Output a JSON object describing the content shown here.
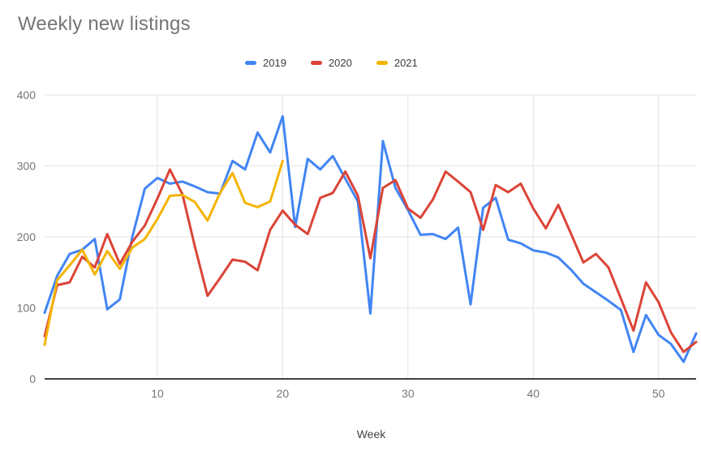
{
  "chart_data": {
    "type": "line",
    "title": "Weekly new listings",
    "xlabel": "Week",
    "x_range": [
      1,
      53
    ],
    "x_ticks": [
      10,
      20,
      30,
      40,
      50
    ],
    "ylim": [
      0,
      400
    ],
    "y_ticks": [
      0,
      100,
      200,
      300,
      400
    ],
    "grid": true,
    "legend_position": "top",
    "background": "#ffffff",
    "gridline_color": "#e3e3e3",
    "baseline_color": "#424242",
    "series": [
      {
        "name": "2019",
        "color": "#4285F4",
        "start_week": 1,
        "values": [
          93,
          145,
          176,
          182,
          197,
          98,
          112,
          200,
          268,
          283,
          275,
          278,
          271,
          263,
          261,
          307,
          295,
          347,
          319,
          370,
          214,
          310,
          295,
          314,
          282,
          250,
          92,
          335,
          269,
          238,
          203,
          204,
          197,
          213,
          105,
          241,
          255,
          196,
          191,
          181,
          178,
          171,
          154,
          134,
          122,
          110,
          97,
          38,
          90,
          62,
          49,
          24,
          64
        ]
      },
      {
        "name": "2020",
        "color": "#DB4437",
        "start_week": 1,
        "values": [
          60,
          132,
          136,
          172,
          157,
          204,
          162,
          193,
          216,
          254,
          295,
          260,
          186,
          117,
          142,
          168,
          165,
          153,
          210,
          237,
          217,
          204,
          255,
          262,
          292,
          258,
          170,
          269,
          280,
          240,
          227,
          253,
          292,
          278,
          263,
          210,
          273,
          263,
          275,
          240,
          212,
          245,
          205,
          164,
          176,
          157,
          113,
          68,
          136,
          108,
          65,
          38,
          52
        ]
      },
      {
        "name": "2021",
        "color": "#F4B400",
        "start_week": 1,
        "values": [
          48,
          139,
          160,
          182,
          147,
          180,
          155,
          185,
          197,
          225,
          258,
          259,
          249,
          223,
          262,
          290,
          248,
          242,
          250,
          307
        ]
      }
    ]
  }
}
